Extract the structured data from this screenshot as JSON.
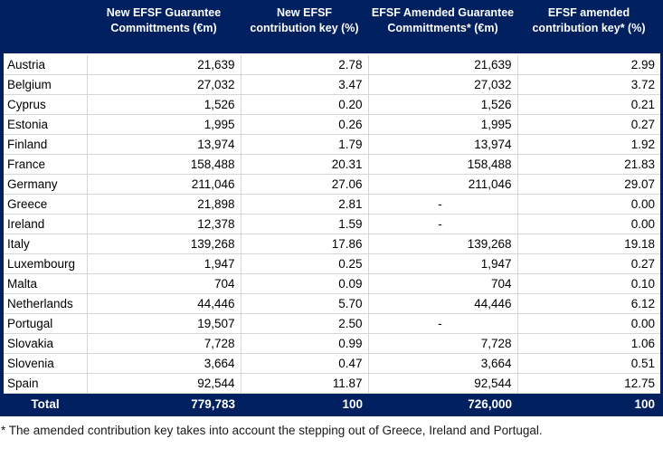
{
  "table": {
    "columns": [
      "New EFSF Guarantee Committments (€m)",
      "New EFSF contribution key (%)",
      "EFSF Amended Guarantee Committments* (€m)",
      "EFSF amended contribution key* (%)"
    ],
    "rows": [
      {
        "country": "Austria",
        "values": [
          "21,639",
          "2.78",
          "21,639",
          "2.99"
        ]
      },
      {
        "country": "Belgium",
        "values": [
          "27,032",
          "3.47",
          "27,032",
          "3.72"
        ]
      },
      {
        "country": "Cyprus",
        "values": [
          "1,526",
          "0.20",
          "1,526",
          "0.21"
        ]
      },
      {
        "country": "Estonia",
        "values": [
          "1,995",
          "0.26",
          "1,995",
          "0.27"
        ]
      },
      {
        "country": "Finland",
        "values": [
          "13,974",
          "1.79",
          "13,974",
          "1.92"
        ]
      },
      {
        "country": "France",
        "values": [
          "158,488",
          "20.31",
          "158,488",
          "21.83"
        ]
      },
      {
        "country": "Germany",
        "values": [
          "211,046",
          "27.06",
          "211,046",
          "29.07"
        ]
      },
      {
        "country": "Greece",
        "values": [
          "21,898",
          "2.81",
          "-",
          "0.00"
        ]
      },
      {
        "country": "Ireland",
        "values": [
          "12,378",
          "1.59",
          "-",
          "0.00"
        ]
      },
      {
        "country": "Italy",
        "values": [
          "139,268",
          "17.86",
          "139,268",
          "19.18"
        ]
      },
      {
        "country": "Luxembourg",
        "values": [
          "1,947",
          "0.25",
          "1,947",
          "0.27"
        ]
      },
      {
        "country": "Malta",
        "values": [
          "704",
          "0.09",
          "704",
          "0.10"
        ]
      },
      {
        "country": "Netherlands",
        "values": [
          "44,446",
          "5.70",
          "44,446",
          "6.12"
        ]
      },
      {
        "country": "Portugal",
        "values": [
          "19,507",
          "2.50",
          "-",
          "0.00"
        ]
      },
      {
        "country": "Slovakia",
        "values": [
          "7,728",
          "0.99",
          "7,728",
          "1.06"
        ]
      },
      {
        "country": "Slovenia",
        "values": [
          "3,664",
          "0.47",
          "3,664",
          "0.51"
        ]
      },
      {
        "country": "Spain",
        "values": [
          "92,544",
          "11.87",
          "92,544",
          "12.75"
        ]
      }
    ],
    "total": {
      "label": "Total",
      "values": [
        "779,783",
        "100",
        "726,000",
        "100"
      ]
    }
  },
  "footnote": "* The amended contribution key takes into account the stepping out of Greece, Ireland and Portugal.",
  "colors": {
    "header_bg": "#002060",
    "header_text": "#ffffff",
    "cell_border": "#d6d6d6",
    "body_bg": "#ffffff"
  }
}
